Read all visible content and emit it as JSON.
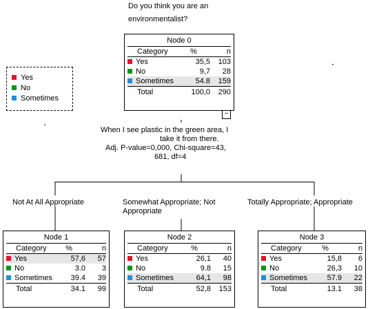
{
  "colors": {
    "yes": "#e8122d",
    "no": "#00961e",
    "sometimes": "#1e8fdc"
  },
  "legend": [
    {
      "key": "yes",
      "label": "Yes"
    },
    {
      "key": "no",
      "label": "No"
    },
    {
      "key": "sometimes",
      "label": "Sometimes"
    }
  ],
  "question": {
    "line1": "Do you think you are an",
    "line2": "environmentalist?"
  },
  "split": {
    "line1": "When I see plastic in the green area, I",
    "line2": "take it from there.",
    "line3": "Adj. P-value=0,000, Chi-square=43,",
    "line4": "681, df=4"
  },
  "branches": [
    "Not At All Appropriate",
    "Somewhat Appropriate; Not Appropriate",
    "Totally Appropriate; Appropriate"
  ],
  "header": {
    "category": "Category",
    "pct": "%",
    "n": "n"
  },
  "collapse_glyph": "−",
  "nodes": [
    {
      "title": "Node 0",
      "rows": [
        {
          "key": "yes",
          "label": "Yes",
          "pct": "35,5",
          "n": "103"
        },
        {
          "key": "no",
          "label": "No",
          "pct": "9,7",
          "n": "28"
        },
        {
          "key": "sometimes",
          "label": "Sometimes",
          "pct": "54.8",
          "n": "159"
        }
      ],
      "total": {
        "label": "Total",
        "pct": "100,0",
        "n": "290"
      }
    },
    {
      "title": "Node 1",
      "rows": [
        {
          "key": "yes",
          "label": "Yes",
          "pct": "57,6",
          "n": "57"
        },
        {
          "key": "no",
          "label": "No",
          "pct": "3.0",
          "n": "3"
        },
        {
          "key": "sometimes",
          "label": "Sometimes",
          "pct": "39.4",
          "n": "39"
        }
      ],
      "total": {
        "label": "Total",
        "pct": "34.1",
        "n": "99"
      }
    },
    {
      "title": "Node 2",
      "rows": [
        {
          "key": "yes",
          "label": "Yes",
          "pct": "26,1",
          "n": "40"
        },
        {
          "key": "no",
          "label": "No",
          "pct": "9.8",
          "n": "15"
        },
        {
          "key": "sometimes",
          "label": "Sometimes",
          "pct": "64,1",
          "n": "98"
        }
      ],
      "total": {
        "label": "Total",
        "pct": "52,8",
        "n": "153"
      }
    },
    {
      "title": "Node 3",
      "rows": [
        {
          "key": "yes",
          "label": "Yes",
          "pct": "15,8",
          "n": "6"
        },
        {
          "key": "no",
          "label": "No",
          "pct": "26,3",
          "n": "10"
        },
        {
          "key": "sometimes",
          "label": "Sometimes",
          "pct": "57.9",
          "n": "22"
        }
      ],
      "total": {
        "label": "Total",
        "pct": "13.1",
        "n": "38"
      }
    }
  ]
}
